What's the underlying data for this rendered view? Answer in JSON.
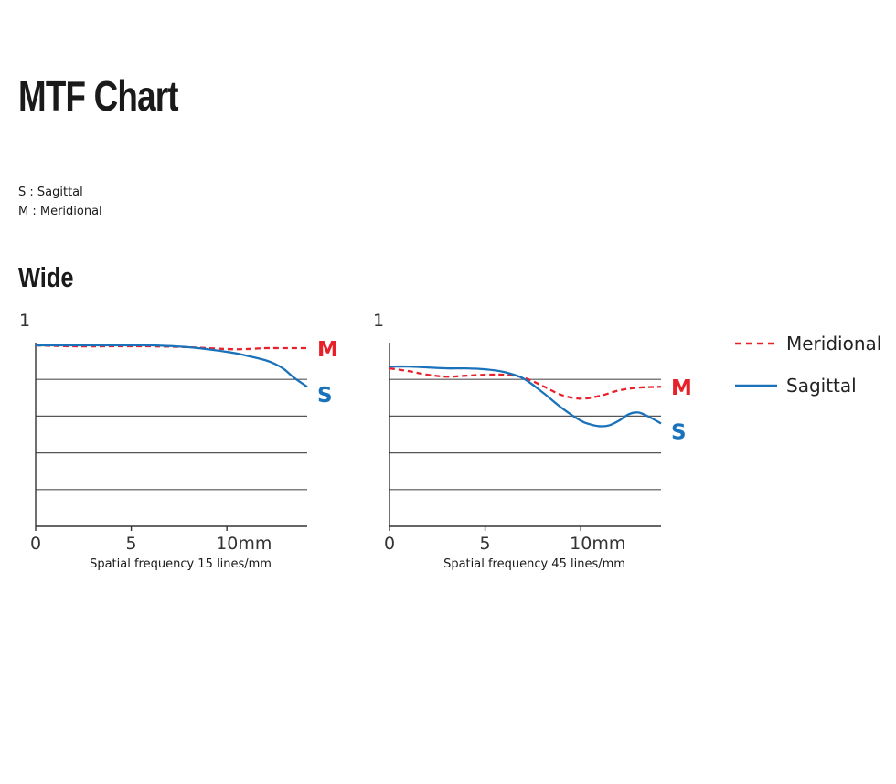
{
  "page": {
    "title": "MTF Chart",
    "legend_lines": [
      "S : Sagittal",
      "M : Meridional"
    ],
    "section": "Wide"
  },
  "colors": {
    "meridional": "#e8202a",
    "sagittal": "#1a72bb",
    "grid": "#555555"
  },
  "legend": {
    "meridional": "Meridional",
    "sagittal": "Sagittal"
  },
  "chart_data": [
    {
      "type": "line",
      "title": "",
      "xlabel": "Spatial frequency 15 lines/mm",
      "ylabel": "",
      "xlim": [
        0,
        14.2
      ],
      "ylim": [
        0,
        1
      ],
      "xticks": [
        0,
        5,
        10
      ],
      "xtick_labels": [
        "0",
        "5",
        "10mm"
      ],
      "ytick_top_label": "1",
      "grid": "horizontal",
      "gridlines": [
        0.2,
        0.4,
        0.6,
        0.8
      ],
      "series": [
        {
          "name": "M",
          "style": "dashed",
          "x": [
            0,
            2,
            4,
            6,
            8,
            10,
            11,
            12,
            13,
            14.2
          ],
          "y": [
            0.985,
            0.98,
            0.98,
            0.98,
            0.975,
            0.965,
            0.965,
            0.97,
            0.97,
            0.97
          ]
        },
        {
          "name": "S",
          "style": "solid",
          "x": [
            0,
            2,
            4,
            6,
            8,
            10,
            11,
            12,
            12.5,
            13,
            13.5,
            14.2
          ],
          "y": [
            0.985,
            0.985,
            0.985,
            0.985,
            0.975,
            0.95,
            0.93,
            0.905,
            0.885,
            0.855,
            0.81,
            0.76
          ]
        }
      ]
    },
    {
      "type": "line",
      "title": "",
      "xlabel": "Spatial frequency 45 lines/mm",
      "ylabel": "",
      "xlim": [
        0,
        14.2
      ],
      "ylim": [
        0,
        1
      ],
      "xticks": [
        0,
        5,
        10
      ],
      "xtick_labels": [
        "0",
        "5",
        "10mm"
      ],
      "ytick_top_label": "1",
      "grid": "horizontal",
      "gridlines": [
        0.2,
        0.4,
        0.6,
        0.8
      ],
      "series": [
        {
          "name": "M",
          "style": "dashed",
          "x": [
            0,
            1,
            2,
            3,
            4,
            5,
            6,
            7,
            8,
            9,
            10,
            11,
            12,
            13,
            14.2
          ],
          "y": [
            0.86,
            0.845,
            0.825,
            0.815,
            0.82,
            0.825,
            0.825,
            0.81,
            0.765,
            0.715,
            0.695,
            0.71,
            0.74,
            0.755,
            0.76
          ]
        },
        {
          "name": "S",
          "style": "solid",
          "x": [
            0,
            1,
            2,
            3,
            4,
            5,
            6,
            7,
            8,
            9,
            10,
            10.5,
            11,
            11.5,
            12,
            12.5,
            13,
            13.5,
            14.2
          ],
          "y": [
            0.87,
            0.87,
            0.865,
            0.86,
            0.86,
            0.855,
            0.84,
            0.805,
            0.73,
            0.645,
            0.575,
            0.555,
            0.545,
            0.55,
            0.575,
            0.61,
            0.62,
            0.6,
            0.56
          ]
        }
      ]
    }
  ]
}
